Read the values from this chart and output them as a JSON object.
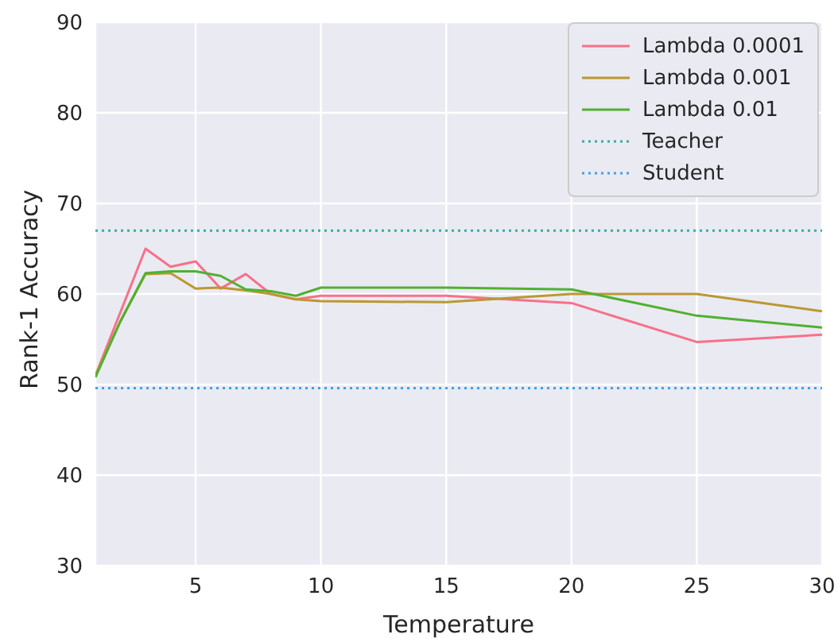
{
  "chart_data": {
    "type": "line",
    "xlabel": "Temperature",
    "ylabel": "Rank-1 Accuracy",
    "x": [
      1,
      2,
      3,
      4,
      5,
      6,
      7,
      8,
      9,
      10,
      15,
      20,
      25,
      30
    ],
    "series": [
      {
        "name": "Lambda 0.0001",
        "color": "#f77189",
        "values": [
          51,
          58,
          65,
          63,
          63.6,
          60.6,
          62.2,
          60,
          59.4,
          59.8,
          59.8,
          59,
          54.7,
          55.5
        ]
      },
      {
        "name": "Lambda 0.001",
        "color": "#bb9832",
        "values": [
          51,
          57,
          62.2,
          62.3,
          60.6,
          60.7,
          60.4,
          60,
          59.4,
          59.2,
          59.1,
          60,
          60,
          58.1
        ]
      },
      {
        "name": "Lambda 0.01",
        "color": "#50b131",
        "values": [
          50.8,
          57,
          62.3,
          62.5,
          62.5,
          62,
          60.5,
          60.3,
          59.8,
          60.7,
          60.7,
          60.5,
          57.6,
          56.3
        ]
      }
    ],
    "ref_lines": [
      {
        "axis": "y",
        "value": 67,
        "label": "Teacher",
        "color": "#36ada4",
        "line_style": "dotted"
      },
      {
        "axis": "y",
        "value": 49.6,
        "label": "Student",
        "color": "#3ba3ec",
        "line_style": "dotted"
      }
    ],
    "xlim": [
      1,
      30
    ],
    "xticks": [
      5,
      10,
      15,
      20,
      25,
      30
    ],
    "ylim": [
      30,
      90
    ],
    "yticks": [
      30,
      40,
      50,
      60,
      70,
      80,
      90
    ],
    "grid": true,
    "legend": "top right",
    "marker": "none",
    "line_style": "solid"
  }
}
